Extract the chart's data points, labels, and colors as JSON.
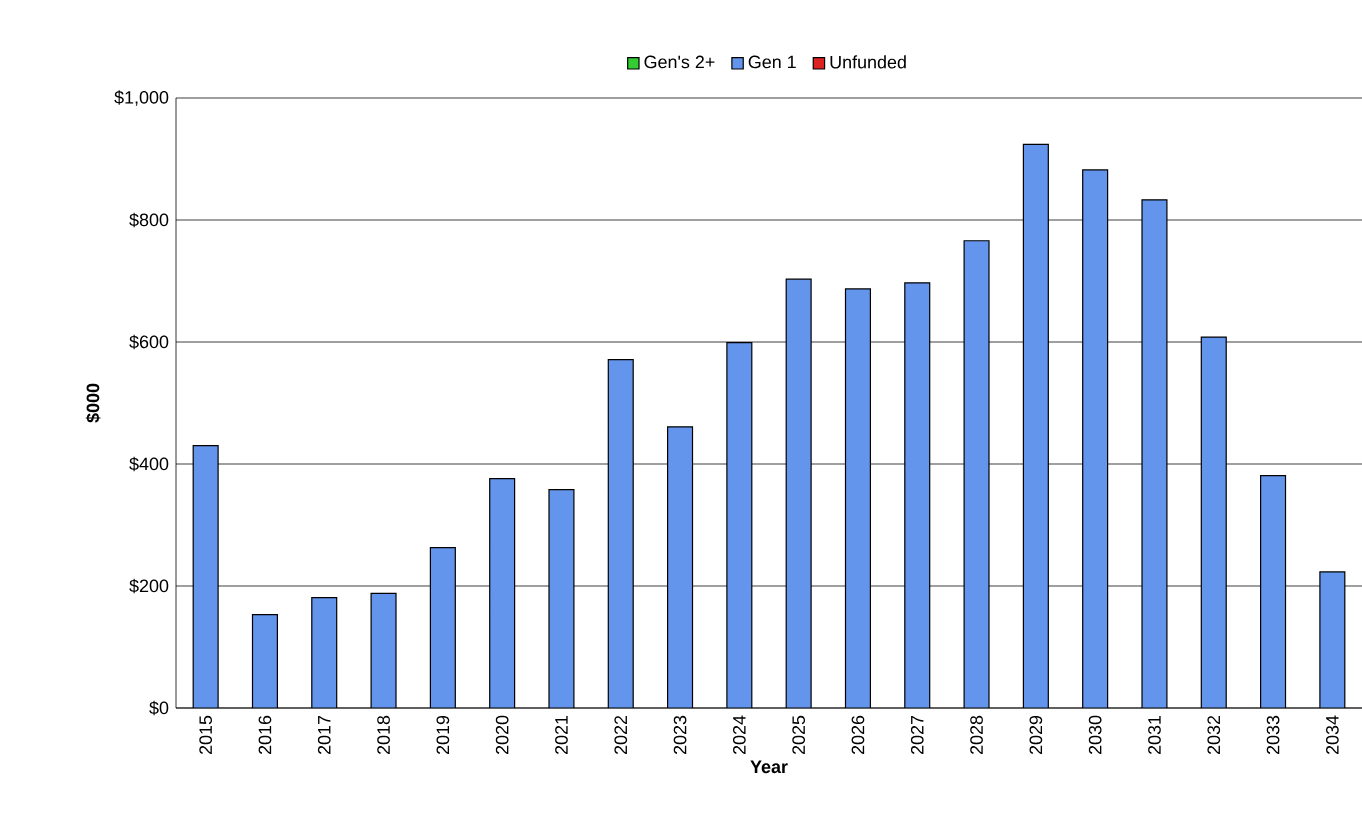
{
  "chart_data": {
    "type": "bar",
    "stacked": true,
    "xlabel": "Year",
    "ylabel": "$000",
    "categories": [
      "2015",
      "2016",
      "2017",
      "2018",
      "2019",
      "2020",
      "2021",
      "2022",
      "2023",
      "2024",
      "2025",
      "2026",
      "2027",
      "2028",
      "2029",
      "2030",
      "2031",
      "2032",
      "2033",
      "2034"
    ],
    "series": [
      {
        "name": "Gen's 2+",
        "color": "#33cc33",
        "values": [
          0,
          0,
          0,
          0,
          0,
          0,
          0,
          0,
          0,
          0,
          0,
          0,
          0,
          0,
          0,
          0,
          0,
          0,
          0,
          0
        ]
      },
      {
        "name": "Gen 1",
        "color": "#6495ed",
        "values": [
          430,
          153,
          181,
          188,
          263,
          376,
          358,
          571,
          461,
          599,
          703,
          687,
          697,
          766,
          924,
          882,
          833,
          608,
          381,
          223
        ]
      },
      {
        "name": "Unfunded",
        "color": "#dd2222",
        "values": [
          0,
          0,
          0,
          0,
          0,
          0,
          0,
          0,
          0,
          0,
          0,
          0,
          0,
          0,
          0,
          0,
          0,
          0,
          0,
          0
        ]
      }
    ],
    "ylim": [
      0,
      1000
    ],
    "yticks": [
      {
        "value": 0,
        "label": "$0"
      },
      {
        "value": 200,
        "label": "$200"
      },
      {
        "value": 400,
        "label": "$400"
      },
      {
        "value": 600,
        "label": "$600"
      },
      {
        "value": 800,
        "label": "$800"
      },
      {
        "value": 1000,
        "label": "$1,000"
      }
    ],
    "grid": "y",
    "legend": "top"
  }
}
